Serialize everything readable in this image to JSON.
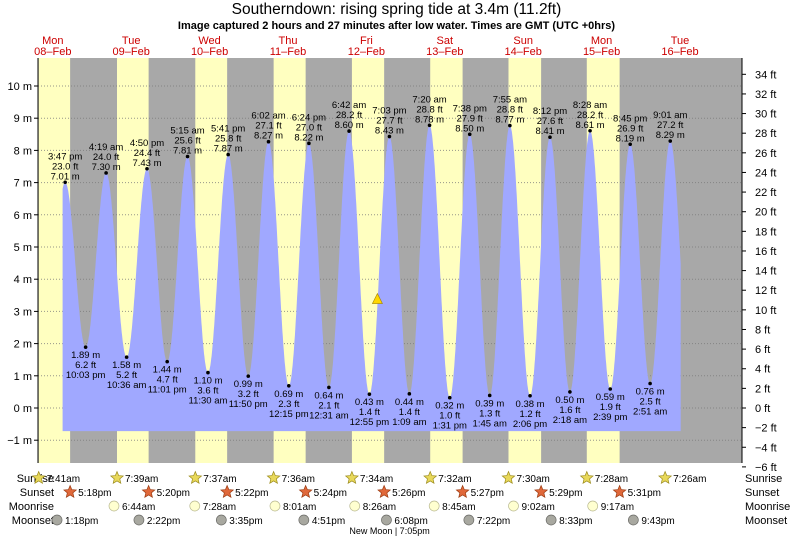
{
  "title": "Southerndown: rising  spring tide at 3.4m (11.2ft)",
  "subtitle": "Image captured 2 hours and 27 minutes after low water. Times are GMT (UTC +0hrs)",
  "colors": {
    "night": "#a8a8a8",
    "day": "#ffffc0",
    "water": "#a0a8ff",
    "day_label": "#cc0000",
    "grid": "#7c7c7c",
    "current_marker": "#ffd700",
    "sun_star": "#e8d85a",
    "sunset_star": "#e0683a",
    "moonrise": "#ffffd0",
    "moonset": "#a8a8a0"
  },
  "chart_data": {
    "type": "area",
    "title": "Southerndown: rising  spring tide at 3.4m (11.2ft)",
    "ylabel_left": "m",
    "ylabel_right": "ft",
    "ylim_m": [
      -1.55,
      11.15
    ],
    "yticks_m": [
      "10 m",
      "9 m",
      "8 m",
      "7 m",
      "6 m",
      "5 m",
      "4 m",
      "3 m",
      "2 m",
      "1 m",
      "0 m",
      "−1 m"
    ],
    "yticks_ft": [
      "34 ft",
      "32 ft",
      "30 ft",
      "28 ft",
      "26 ft",
      "24 ft",
      "22 ft",
      "20 ft",
      "18 ft",
      "16 ft",
      "14 ft",
      "12 ft",
      "10 ft",
      "8 ft",
      "6 ft",
      "4 ft",
      "2 ft",
      "0 ft",
      "−2 ft",
      "−4 ft",
      "−6 ft"
    ],
    "days": [
      {
        "dow": "Mon",
        "date": "08–Feb"
      },
      {
        "dow": "Tue",
        "date": "09–Feb"
      },
      {
        "dow": "Wed",
        "date": "10–Feb"
      },
      {
        "dow": "Thu",
        "date": "11–Feb"
      },
      {
        "dow": "Fri",
        "date": "12–Feb"
      },
      {
        "dow": "Sat",
        "date": "13–Feb"
      },
      {
        "dow": "Sun",
        "date": "14–Feb"
      },
      {
        "dow": "Mon",
        "date": "15–Feb"
      },
      {
        "dow": "Tue",
        "date": "16–Feb"
      }
    ],
    "tides": [
      {
        "type": "high",
        "time": "3:47 pm",
        "ft": "23.0 ft",
        "m": 7.01,
        "m_label": "7.01 m"
      },
      {
        "type": "low",
        "time": "10:03 pm",
        "ft": "6.2 ft",
        "m": 1.89,
        "m_label": "1.89 m"
      },
      {
        "type": "high",
        "time": "4:19 am",
        "ft": "24.0 ft",
        "m": 7.3,
        "m_label": "7.30 m"
      },
      {
        "type": "low",
        "time": "10:36 am",
        "ft": "5.2 ft",
        "m": 1.58,
        "m_label": "1.58 m"
      },
      {
        "type": "high",
        "time": "4:50 pm",
        "ft": "24.4 ft",
        "m": 7.43,
        "m_label": "7.43 m"
      },
      {
        "type": "low",
        "time": "11:01 pm",
        "ft": "4.7 ft",
        "m": 1.44,
        "m_label": "1.44 m"
      },
      {
        "type": "high",
        "time": "5:15 am",
        "ft": "25.6 ft",
        "m": 7.81,
        "m_label": "7.81 m"
      },
      {
        "type": "low",
        "time": "11:30 am",
        "ft": "3.6 ft",
        "m": 1.1,
        "m_label": "1.10 m"
      },
      {
        "type": "high",
        "time": "5:41 pm",
        "ft": "25.8 ft",
        "m": 7.87,
        "m_label": "7.87 m"
      },
      {
        "type": "low",
        "time": "11:50 pm",
        "ft": "3.2 ft",
        "m": 0.99,
        "m_label": "0.99 m"
      },
      {
        "type": "high",
        "time": "6:02 am",
        "ft": "27.1 ft",
        "m": 8.27,
        "m_label": "8.27 m"
      },
      {
        "type": "low",
        "time": "12:15 pm",
        "ft": "2.3 ft",
        "m": 0.69,
        "m_label": "0.69 m"
      },
      {
        "type": "high",
        "time": "6:24 pm",
        "ft": "27.0 ft",
        "m": 8.22,
        "m_label": "8.22 m"
      },
      {
        "type": "low",
        "time": "12:31 am",
        "ft": "2.1 ft",
        "m": 0.64,
        "m_label": "0.64 m"
      },
      {
        "type": "high",
        "time": "6:42 am",
        "ft": "28.2 ft",
        "m": 8.6,
        "m_label": "8.60 m"
      },
      {
        "type": "low",
        "time": "12:55 pm",
        "ft": "1.4 ft",
        "m": 0.43,
        "m_label": "0.43 m"
      },
      {
        "type": "high",
        "time": "7:03 pm",
        "ft": "27.7 ft",
        "m": 8.43,
        "m_label": "8.43 m"
      },
      {
        "type": "low",
        "time": "1:09 am",
        "ft": "1.4 ft",
        "m": 0.44,
        "m_label": "0.44 m"
      },
      {
        "type": "high",
        "time": "7:20 am",
        "ft": "28.8 ft",
        "m": 8.78,
        "m_label": "8.78 m"
      },
      {
        "type": "low",
        "time": "1:31 pm",
        "ft": "1.0 ft",
        "m": 0.32,
        "m_label": "0.32 m"
      },
      {
        "type": "high",
        "time": "7:38 pm",
        "ft": "27.9 ft",
        "m": 8.5,
        "m_label": "8.50 m"
      },
      {
        "type": "low",
        "time": "1:45 am",
        "ft": "1.3 ft",
        "m": 0.39,
        "m_label": "0.39 m"
      },
      {
        "type": "high",
        "time": "7:55 am",
        "ft": "28.8 ft",
        "m": 8.77,
        "m_label": "8.77 m"
      },
      {
        "type": "low",
        "time": "2:06 pm",
        "ft": "1.2 ft",
        "m": 0.38,
        "m_label": "0.38 m"
      },
      {
        "type": "high",
        "time": "8:12 pm",
        "ft": "27.6 ft",
        "m": 8.41,
        "m_label": "8.41 m"
      },
      {
        "type": "low",
        "time": "2:18 am",
        "ft": "1.6 ft",
        "m": 0.5,
        "m_label": "0.50 m"
      },
      {
        "type": "high",
        "time": "8:28 am",
        "ft": "28.2 ft",
        "m": 8.61,
        "m_label": "8.61 m"
      },
      {
        "type": "low",
        "time": "2:39 pm",
        "ft": "1.9 ft",
        "m": 0.59,
        "m_label": "0.59 m"
      },
      {
        "type": "high",
        "time": "8:45 pm",
        "ft": "26.9 ft",
        "m": 8.19,
        "m_label": "8.19 m"
      },
      {
        "type": "low",
        "time": "2:51 am",
        "ft": "2.5 ft",
        "m": 0.76,
        "m_label": "0.76 m"
      },
      {
        "type": "high",
        "time": "9:01 am",
        "ft": "27.2 ft",
        "m": 8.29,
        "m_label": "8.29 m"
      }
    ],
    "current": {
      "m": 3.4,
      "label": "3.4m (11.2ft)"
    },
    "sunrise": [
      "7:41am",
      "7:39am",
      "7:37am",
      "7:36am",
      "7:34am",
      "7:32am",
      "7:30am",
      "7:28am",
      "7:26am"
    ],
    "sunset": [
      "5:18pm",
      "5:20pm",
      "5:22pm",
      "5:24pm",
      "5:26pm",
      "5:27pm",
      "5:29pm",
      "5:31pm"
    ],
    "moonrise": [
      "6:44am",
      "7:28am",
      "8:01am",
      "8:26am",
      "8:45am",
      "9:02am",
      "9:17am"
    ],
    "moonset": [
      "1:18pm",
      "2:22pm",
      "3:35pm",
      "4:51pm",
      "6:08pm",
      "7:22pm",
      "8:33pm",
      "9:43pm"
    ],
    "moon_phase": "New Moon | 7:05pm",
    "row_labels": {
      "sunrise": "Sunrise",
      "sunset": "Sunset",
      "moonrise": "Moonrise",
      "moonset": "Moonset"
    }
  }
}
